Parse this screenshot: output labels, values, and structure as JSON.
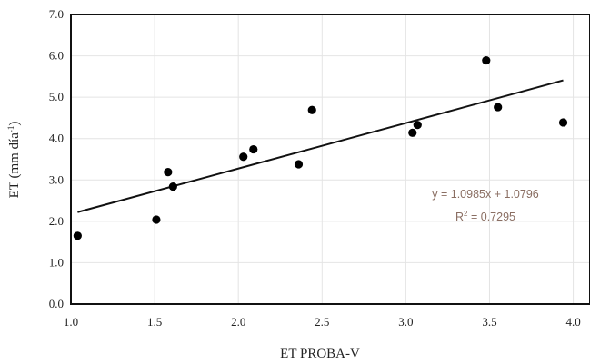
{
  "chart_data": {
    "type": "scatter",
    "xlabel": "ET PROBA-V",
    "ylabel": "ET (mm día",
    "ylabel_sup": "-1",
    "ylabel_close": ")",
    "xlim": [
      1.0,
      4.1
    ],
    "ylim": [
      0.0,
      7.0
    ],
    "x_ticks": [
      "1.0",
      "1.5",
      "2.0",
      "2.5",
      "3.0",
      "3.5",
      "4.0"
    ],
    "y_ticks": [
      "0.0",
      "1.0",
      "2.0",
      "3.0",
      "4.0",
      "5.0",
      "6.0",
      "7.0"
    ],
    "grid": true,
    "points": [
      {
        "x": 1.04,
        "y": 1.65
      },
      {
        "x": 1.51,
        "y": 2.04
      },
      {
        "x": 1.58,
        "y": 3.19
      },
      {
        "x": 1.61,
        "y": 2.84
      },
      {
        "x": 2.03,
        "y": 3.56
      },
      {
        "x": 2.09,
        "y": 3.74
      },
      {
        "x": 2.36,
        "y": 3.38
      },
      {
        "x": 2.44,
        "y": 4.69
      },
      {
        "x": 3.04,
        "y": 4.14
      },
      {
        "x": 3.07,
        "y": 4.33
      },
      {
        "x": 3.48,
        "y": 5.89
      },
      {
        "x": 3.55,
        "y": 4.76
      },
      {
        "x": 3.94,
        "y": 4.39
      }
    ],
    "trendline": {
      "slope": 1.0985,
      "intercept": 1.0796,
      "x_range": [
        1.04,
        3.94
      ],
      "equation": "y = 1.0985x + 1.0796",
      "r2_prefix": "R",
      "r2_sup": "2",
      "r2_value": " = 0.7295"
    }
  }
}
